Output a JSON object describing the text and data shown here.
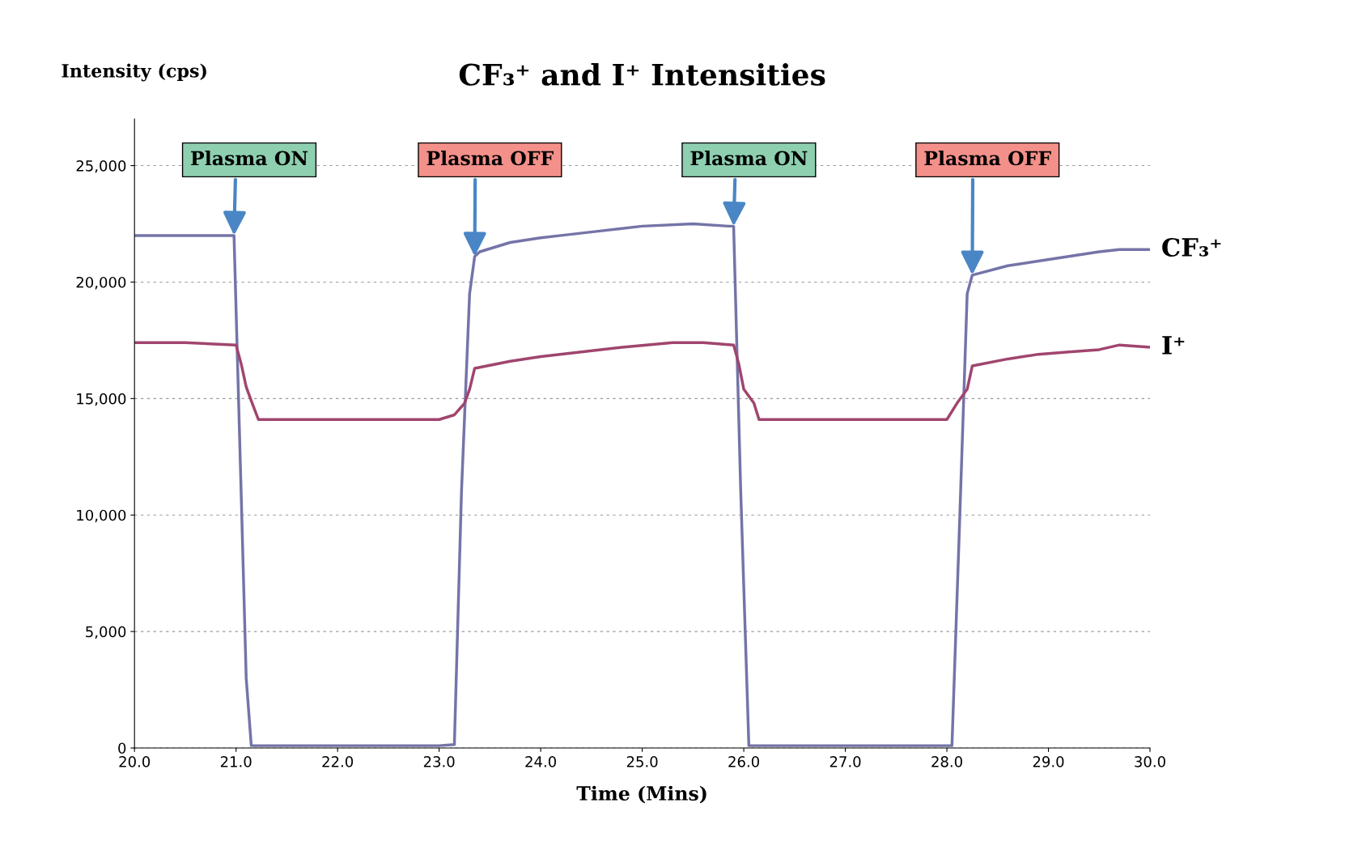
{
  "chart_data": {
    "type": "line",
    "title": "CF₃⁺ and I⁺ Intensities",
    "xlabel": "Time (Mins)",
    "ylabel": "Intensity (cps)",
    "xlim": [
      20,
      30
    ],
    "xticks": [
      {
        "value": 20,
        "label": "20.0"
      },
      {
        "value": 21,
        "label": "21.0"
      },
      {
        "value": 22,
        "label": "22.0"
      },
      {
        "value": 23,
        "label": "23.0"
      },
      {
        "value": 24,
        "label": "24.0"
      },
      {
        "value": 25,
        "label": "25.0"
      },
      {
        "value": 26,
        "label": "26.0"
      },
      {
        "value": 27,
        "label": "27.0"
      },
      {
        "value": 28,
        "label": "28.0"
      },
      {
        "value": 29,
        "label": "29.0"
      },
      {
        "value": 30,
        "label": "30.0"
      }
    ],
    "ylim": [
      0,
      27000
    ],
    "yticks": [
      0,
      {
        "value": 5000,
        "label": "5,000"
      },
      {
        "value": 10000,
        "label": "10,000"
      },
      {
        "value": 15000,
        "label": "15,000"
      },
      {
        "value": 20000,
        "label": "20,000"
      },
      {
        "value": 25000,
        "label": "25,000"
      }
    ],
    "grid": "y",
    "legend": false,
    "marker": "none",
    "line_style": "solid",
    "series": [
      {
        "name": "CF₃⁺",
        "color": "#7474a8",
        "x": [
          20,
          20.5,
          20.98,
          21.05,
          21.1,
          21.15,
          21.5,
          22,
          22.5,
          23,
          23.15,
          23.22,
          23.3,
          23.35,
          23.4,
          23.7,
          24,
          24.2,
          24.6,
          25,
          25.5,
          25.85,
          25.9,
          25.97,
          26.05,
          26.5,
          27,
          27.5,
          28.05,
          28.12,
          28.2,
          28.25,
          28.6,
          28.9,
          29.2,
          29.5,
          29.7,
          30
        ],
        "values": [
          22000,
          22000,
          22000,
          11000,
          3000,
          100,
          100,
          100,
          100,
          100,
          150,
          11000,
          19500,
          21100,
          21300,
          21700,
          21900,
          22000,
          22200,
          22400,
          22500,
          22400,
          22400,
          11000,
          100,
          100,
          100,
          100,
          100,
          9000,
          19500,
          20300,
          20700,
          20900,
          21100,
          21300,
          21400,
          21400
        ]
      },
      {
        "name": "I⁺",
        "color": "#a0456e",
        "x": [
          20,
          20.5,
          21,
          21.05,
          21.1,
          21.15,
          21.22,
          21.5,
          22,
          22.5,
          23,
          23.15,
          23.25,
          23.3,
          23.35,
          23.7,
          24,
          24.4,
          24.8,
          25.3,
          25.6,
          25.9,
          25.95,
          26,
          26.1,
          26.15,
          26.5,
          27,
          27.5,
          28,
          28.1,
          28.2,
          28.25,
          28.6,
          28.9,
          29.2,
          29.5,
          29.7,
          30
        ],
        "values": [
          17400,
          17400,
          17300,
          16500,
          15500,
          14900,
          14100,
          14100,
          14100,
          14100,
          14100,
          14300,
          14800,
          15400,
          16300,
          16600,
          16800,
          17000,
          17200,
          17400,
          17400,
          17300,
          16500,
          15400,
          14800,
          14100,
          14100,
          14100,
          14100,
          14100,
          14800,
          15400,
          16400,
          16700,
          16900,
          17000,
          17100,
          17300,
          17200
        ]
      }
    ],
    "annotations": [
      {
        "text": "Plasma ON",
        "x": 20.98,
        "y": 22000
      },
      {
        "text": "Plasma OFF",
        "x": 23.35,
        "y": 21100
      },
      {
        "text": "Plasma ON",
        "x": 25.9,
        "y": 22400
      },
      {
        "text": "Plasma OFF",
        "x": 28.25,
        "y": 20300
      }
    ]
  }
}
